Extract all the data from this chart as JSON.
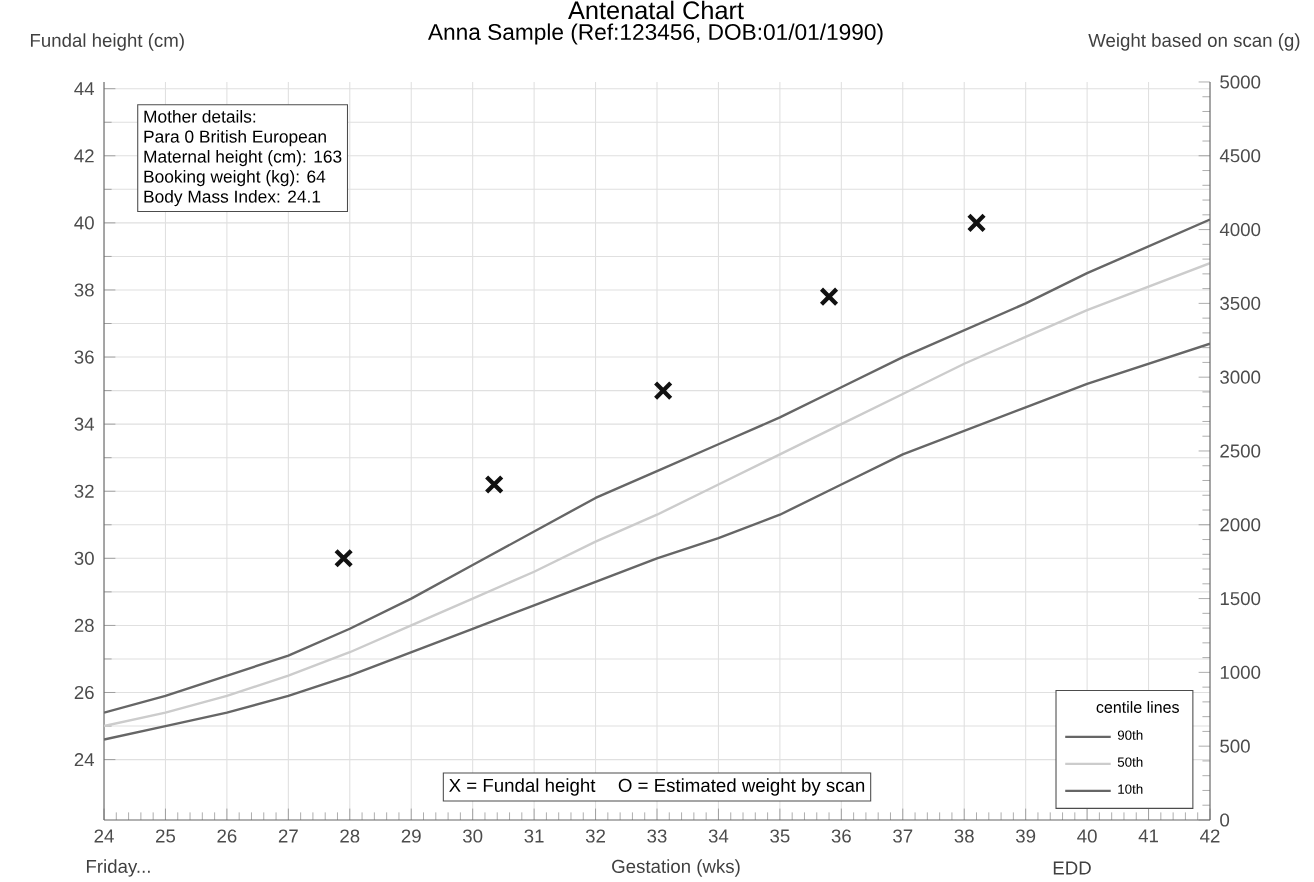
{
  "chart_data": {
    "type": "line",
    "title": "Antenatal Chart",
    "subtitle": "Anna Sample (Ref:123456, DOB:01/01/1990)",
    "xlabel": "Gestation (wks)",
    "ylabel": "Fundal height (cm)",
    "y2label": "Weight based on scan (g)",
    "legend_title": "centile lines",
    "legend": "bottom right",
    "grid": true,
    "marker": "none",
    "line_style": "solid",
    "x": [
      24,
      25,
      26,
      27,
      28,
      29,
      30,
      31,
      32,
      33,
      34,
      35,
      36,
      37,
      38,
      39,
      40,
      41,
      42
    ],
    "xlim": [
      24,
      42
    ],
    "xticks": [
      24,
      25,
      26,
      27,
      28,
      29,
      30,
      31,
      32,
      33,
      34,
      35,
      36,
      37,
      38,
      39,
      40,
      41,
      42
    ],
    "ylim": [
      22.2,
      44.2
    ],
    "yticks": [
      24,
      26,
      28,
      30,
      32,
      34,
      36,
      38,
      40,
      42,
      44
    ],
    "y2lim": [
      0,
      5000
    ],
    "y2ticks": [
      0,
      500,
      1000,
      1500,
      2000,
      2500,
      3000,
      3500,
      4000,
      4500,
      5000
    ],
    "series": [
      {
        "name": "90th",
        "color": "#666666",
        "values": [
          25.4,
          25.9,
          26.5,
          27.1,
          27.9,
          28.8,
          29.8,
          30.8,
          31.8,
          32.6,
          33.4,
          34.2,
          35.1,
          36.0,
          36.8,
          37.6,
          38.5,
          39.3,
          40.1
        ]
      },
      {
        "name": "50th",
        "color": "#cccccc",
        "values": [
          25.0,
          25.4,
          25.9,
          26.5,
          27.2,
          28.0,
          28.8,
          29.6,
          30.5,
          31.3,
          32.2,
          33.1,
          34.0,
          34.9,
          35.8,
          36.6,
          37.4,
          38.1,
          38.8
        ]
      },
      {
        "name": "10th",
        "color": "#666666",
        "values": [
          24.6,
          25.0,
          25.4,
          25.9,
          26.5,
          27.2,
          27.9,
          28.6,
          29.3,
          30.0,
          30.6,
          31.3,
          32.2,
          33.1,
          33.8,
          34.5,
          35.2,
          35.8,
          36.4
        ]
      },
      {
        "type": "scatter",
        "marker": "cross",
        "color": "#111111",
        "x": [
          27.9,
          30.35,
          33.1,
          35.8,
          38.2
        ],
        "values": [
          30.0,
          32.2,
          35.0,
          37.8,
          40.0
        ]
      }
    ],
    "annotations": [
      "Mother details:",
      "Para 0  British European",
      "Maternal height (cm): 163",
      "Booking weight (kg): 64",
      "Body Mass Index: 24.1",
      "X = Fundal height",
      "O = Estimated weight by scan",
      "Friday...",
      "EDD"
    ]
  }
}
